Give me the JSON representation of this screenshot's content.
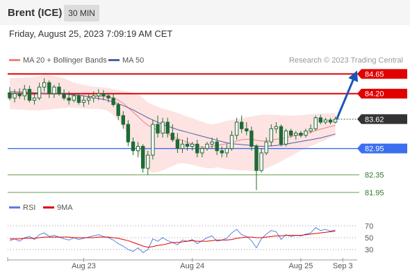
{
  "header": {
    "title": "Brent (ICE)",
    "timeframe": "30 MIN"
  },
  "date_label": "Friday, August 25, 2023 7:09:19 AM CET",
  "credit": "Research © 2023 Trading Central",
  "colors": {
    "resistance": "#e00000",
    "support_strong": "#3b6ff0",
    "support_green": "#6a9a50",
    "band_fill": "#fddada",
    "ma20": "#f08080",
    "ma50": "#5060a0",
    "candle": "#1e6b35",
    "rsi": "#5a7fe0",
    "rsi_ma": "#e00000",
    "price_tag": "#333333",
    "arrow": "#1a56b8"
  },
  "chart_data": [
    {
      "type": "candlestick",
      "legend": [
        {
          "name": "MA 20 + Bollinger Bands",
          "color": "#f08080"
        },
        {
          "name": "MA 50",
          "color": "#5060a0"
        }
      ],
      "legend_position": "top-left",
      "x_ticks": [
        {
          "label": "Aug 23",
          "index": 15
        },
        {
          "label": "Aug 24",
          "index": 37
        },
        {
          "label": "Aug 25",
          "index": 59
        },
        {
          "label": "Sep 3",
          "index": 67.5
        }
      ],
      "ylim": [
        81.9,
        84.75
      ],
      "levels": [
        {
          "label": "84.65",
          "value": 84.65,
          "kind": "resistance"
        },
        {
          "label": "84.20",
          "value": 84.2,
          "kind": "resistance"
        },
        {
          "label": "83.62",
          "value": 83.62,
          "kind": "current"
        },
        {
          "label": "82.95",
          "value": 82.95,
          "kind": "pivot"
        },
        {
          "label": "82.35",
          "value": 82.35,
          "kind": "support"
        },
        {
          "label": "81.95",
          "value": 81.95,
          "kind": "support"
        }
      ],
      "candles": [
        {
          "o": 84.22,
          "h": 84.35,
          "l": 84.05,
          "c": 84.1
        },
        {
          "o": 84.1,
          "h": 84.3,
          "l": 84.0,
          "c": 84.2
        },
        {
          "o": 84.2,
          "h": 84.32,
          "l": 84.08,
          "c": 84.15
        },
        {
          "o": 84.15,
          "h": 84.4,
          "l": 84.05,
          "c": 84.3
        },
        {
          "o": 84.3,
          "h": 84.38,
          "l": 84.0,
          "c": 84.05
        },
        {
          "o": 84.05,
          "h": 84.2,
          "l": 83.95,
          "c": 84.1
        },
        {
          "o": 84.1,
          "h": 84.45,
          "l": 84.05,
          "c": 84.35
        },
        {
          "o": 84.35,
          "h": 84.55,
          "l": 84.25,
          "c": 84.45
        },
        {
          "o": 84.45,
          "h": 84.5,
          "l": 84.1,
          "c": 84.2
        },
        {
          "o": 84.2,
          "h": 84.4,
          "l": 84.1,
          "c": 84.35
        },
        {
          "o": 84.35,
          "h": 84.45,
          "l": 84.15,
          "c": 84.2
        },
        {
          "o": 84.2,
          "h": 84.3,
          "l": 84.05,
          "c": 84.1
        },
        {
          "o": 84.1,
          "h": 84.25,
          "l": 83.95,
          "c": 84.05
        },
        {
          "o": 84.05,
          "h": 84.2,
          "l": 84.0,
          "c": 84.15
        },
        {
          "o": 84.15,
          "h": 84.22,
          "l": 83.95,
          "c": 84.0
        },
        {
          "o": 84.0,
          "h": 84.15,
          "l": 83.9,
          "c": 84.05
        },
        {
          "o": 84.05,
          "h": 84.18,
          "l": 83.95,
          "c": 84.1
        },
        {
          "o": 84.1,
          "h": 84.25,
          "l": 84.0,
          "c": 84.15
        },
        {
          "o": 84.15,
          "h": 84.3,
          "l": 84.05,
          "c": 84.2
        },
        {
          "o": 84.2,
          "h": 84.28,
          "l": 84.05,
          "c": 84.15
        },
        {
          "o": 84.15,
          "h": 84.22,
          "l": 84.0,
          "c": 84.1
        },
        {
          "o": 84.1,
          "h": 84.2,
          "l": 83.9,
          "c": 83.95
        },
        {
          "o": 83.95,
          "h": 84.0,
          "l": 83.6,
          "c": 83.7
        },
        {
          "o": 83.7,
          "h": 83.8,
          "l": 83.4,
          "c": 83.5
        },
        {
          "o": 83.5,
          "h": 83.6,
          "l": 83.0,
          "c": 83.1
        },
        {
          "o": 83.1,
          "h": 83.2,
          "l": 82.8,
          "c": 82.9
        },
        {
          "o": 82.9,
          "h": 83.1,
          "l": 82.75,
          "c": 83.0
        },
        {
          "o": 83.0,
          "h": 83.05,
          "l": 82.4,
          "c": 82.5
        },
        {
          "o": 82.5,
          "h": 82.9,
          "l": 82.35,
          "c": 82.8
        },
        {
          "o": 82.8,
          "h": 83.6,
          "l": 82.7,
          "c": 83.5
        },
        {
          "o": 83.5,
          "h": 83.7,
          "l": 83.2,
          "c": 83.3
        },
        {
          "o": 83.3,
          "h": 83.65,
          "l": 83.2,
          "c": 83.55
        },
        {
          "o": 83.55,
          "h": 83.65,
          "l": 83.2,
          "c": 83.3
        },
        {
          "o": 83.3,
          "h": 83.5,
          "l": 83.1,
          "c": 83.15
        },
        {
          "o": 83.15,
          "h": 83.3,
          "l": 82.85,
          "c": 82.95
        },
        {
          "o": 82.95,
          "h": 83.15,
          "l": 82.85,
          "c": 83.05
        },
        {
          "o": 83.05,
          "h": 83.2,
          "l": 82.9,
          "c": 83.0
        },
        {
          "o": 83.0,
          "h": 83.1,
          "l": 82.9,
          "c": 83.05
        },
        {
          "o": 83.05,
          "h": 83.15,
          "l": 82.75,
          "c": 82.85
        },
        {
          "o": 82.85,
          "h": 83.0,
          "l": 82.75,
          "c": 82.95
        },
        {
          "o": 82.95,
          "h": 83.1,
          "l": 82.9,
          "c": 83.05
        },
        {
          "o": 83.05,
          "h": 83.2,
          "l": 82.95,
          "c": 83.1
        },
        {
          "o": 83.1,
          "h": 83.2,
          "l": 82.8,
          "c": 82.9
        },
        {
          "o": 82.9,
          "h": 83.0,
          "l": 82.75,
          "c": 82.85
        },
        {
          "o": 82.85,
          "h": 83.05,
          "l": 82.75,
          "c": 82.95
        },
        {
          "o": 82.95,
          "h": 83.35,
          "l": 82.9,
          "c": 83.25
        },
        {
          "o": 83.25,
          "h": 83.65,
          "l": 83.15,
          "c": 83.55
        },
        {
          "o": 83.55,
          "h": 83.7,
          "l": 83.3,
          "c": 83.4
        },
        {
          "o": 83.4,
          "h": 83.55,
          "l": 83.25,
          "c": 83.35
        },
        {
          "o": 83.35,
          "h": 83.45,
          "l": 82.9,
          "c": 83.0
        },
        {
          "o": 83.0,
          "h": 83.05,
          "l": 82.0,
          "c": 82.45
        },
        {
          "o": 82.45,
          "h": 82.95,
          "l": 82.4,
          "c": 82.85
        },
        {
          "o": 82.85,
          "h": 83.2,
          "l": 82.8,
          "c": 83.1
        },
        {
          "o": 83.1,
          "h": 83.5,
          "l": 83.0,
          "c": 83.4
        },
        {
          "o": 83.4,
          "h": 83.55,
          "l": 83.3,
          "c": 83.45
        },
        {
          "o": 83.45,
          "h": 83.5,
          "l": 83.0,
          "c": 83.05
        },
        {
          "o": 83.05,
          "h": 83.4,
          "l": 83.0,
          "c": 83.35
        },
        {
          "o": 83.35,
          "h": 83.4,
          "l": 83.2,
          "c": 83.25
        },
        {
          "o": 83.25,
          "h": 83.35,
          "l": 83.15,
          "c": 83.3
        },
        {
          "o": 83.3,
          "h": 83.35,
          "l": 83.2,
          "c": 83.25
        },
        {
          "o": 83.25,
          "h": 83.4,
          "l": 83.2,
          "c": 83.35
        },
        {
          "o": 83.35,
          "h": 83.5,
          "l": 83.3,
          "c": 83.4
        },
        {
          "o": 83.4,
          "h": 83.7,
          "l": 83.35,
          "c": 83.65
        },
        {
          "o": 83.65,
          "h": 83.72,
          "l": 83.5,
          "c": 83.55
        },
        {
          "o": 83.55,
          "h": 83.65,
          "l": 83.5,
          "c": 83.6
        },
        {
          "o": 83.6,
          "h": 83.65,
          "l": 83.5,
          "c": 83.55
        },
        {
          "o": 83.55,
          "h": 83.68,
          "l": 83.52,
          "c": 83.62
        }
      ],
      "ma20": [
        84.2,
        84.2,
        84.19,
        84.19,
        84.18,
        84.18,
        84.19,
        84.2,
        84.2,
        84.2,
        84.2,
        84.19,
        84.18,
        84.17,
        84.16,
        84.15,
        84.14,
        84.14,
        84.14,
        84.14,
        84.13,
        84.1,
        84.05,
        83.98,
        83.88,
        83.78,
        83.68,
        83.57,
        83.48,
        83.42,
        83.37,
        83.33,
        83.28,
        83.23,
        83.18,
        83.13,
        83.09,
        83.05,
        83.01,
        82.98,
        82.98,
        83.0,
        83.02,
        83.04,
        83.06,
        83.09,
        83.12,
        83.15,
        83.16,
        83.16,
        83.14,
        83.12,
        83.12,
        83.14,
        83.16,
        83.17,
        83.2,
        83.22,
        83.25,
        83.27,
        83.29,
        83.32,
        83.36,
        83.39,
        83.42,
        83.45,
        83.48
      ],
      "ma50": [
        84.25,
        84.24,
        84.24,
        84.23,
        84.23,
        84.22,
        84.22,
        84.21,
        84.21,
        84.2,
        84.2,
        84.19,
        84.18,
        84.17,
        84.16,
        84.15,
        84.13,
        84.11,
        84.09,
        84.07,
        84.04,
        84.01,
        83.97,
        83.93,
        83.88,
        83.83,
        83.77,
        83.71,
        83.65,
        83.6,
        83.55,
        83.5,
        83.46,
        83.42,
        83.38,
        83.35,
        83.32,
        83.29,
        83.26,
        83.23,
        83.2,
        83.17,
        83.14,
        83.11,
        83.08,
        83.06,
        83.05,
        83.04,
        83.03,
        83.02,
        83.01,
        83.0,
        83.0,
        83.01,
        83.02,
        83.03,
        83.05,
        83.07,
        83.09,
        83.11,
        83.13,
        83.15,
        83.17,
        83.19,
        83.22,
        83.25,
        83.28
      ],
      "bb_upper": [
        84.55,
        84.56,
        84.56,
        84.57,
        84.57,
        84.58,
        84.6,
        84.62,
        84.62,
        84.6,
        84.58,
        84.55,
        84.5,
        84.45,
        84.42,
        84.4,
        84.38,
        84.36,
        84.35,
        84.34,
        84.33,
        84.3,
        84.28,
        84.26,
        84.24,
        84.22,
        84.2,
        84.1,
        84.0,
        83.95,
        83.9,
        83.86,
        83.83,
        83.8,
        83.76,
        83.72,
        83.68,
        83.64,
        83.6,
        83.56,
        83.52,
        83.5,
        83.52,
        83.55,
        83.58,
        83.6,
        83.62,
        83.64,
        83.66,
        83.68,
        83.7,
        83.72,
        83.72,
        83.72,
        83.72,
        83.71,
        83.7,
        83.7,
        83.7,
        83.71,
        83.72,
        83.73,
        83.74,
        83.75,
        83.75,
        83.75,
        83.76
      ],
      "bb_lower": [
        83.85,
        83.84,
        83.84,
        83.83,
        83.82,
        83.82,
        83.82,
        83.83,
        83.84,
        83.85,
        83.86,
        83.87,
        83.88,
        83.88,
        83.87,
        83.86,
        83.85,
        83.85,
        83.85,
        83.84,
        83.8,
        83.72,
        83.6,
        83.45,
        83.25,
        83.05,
        82.85,
        82.65,
        82.45,
        82.4,
        82.42,
        82.45,
        82.5,
        82.55,
        82.6,
        82.62,
        82.6,
        82.58,
        82.55,
        82.52,
        82.5,
        82.5,
        82.52,
        82.5,
        82.48,
        82.47,
        82.46,
        82.45,
        82.45,
        82.44,
        82.43,
        82.45,
        82.5,
        82.55,
        82.6,
        82.66,
        82.72,
        82.78,
        82.84,
        82.9,
        82.95,
        83.0,
        83.05,
        83.1,
        83.15,
        83.2,
        83.24
      ],
      "projection": {
        "from": 83.62,
        "to": 84.65
      }
    },
    {
      "type": "line",
      "legend": [
        {
          "name": "RSI",
          "color": "#5a7fe0"
        },
        {
          "name": "9MA",
          "color": "#e00000"
        }
      ],
      "y_ticks": [
        "70",
        "50",
        "30"
      ],
      "ylim": [
        15,
        85
      ],
      "series": [
        {
          "name": "RSI",
          "values": [
            45,
            48,
            44,
            50,
            52,
            47,
            55,
            58,
            52,
            54,
            51,
            48,
            46,
            50,
            47,
            49,
            51,
            53,
            55,
            52,
            50,
            46,
            40,
            36,
            30,
            27,
            33,
            25,
            30,
            48,
            44,
            50,
            45,
            42,
            38,
            46,
            44,
            47,
            40,
            45,
            50,
            53,
            44,
            46,
            49,
            58,
            64,
            55,
            52,
            45,
            33,
            48,
            56,
            62,
            60,
            47,
            55,
            52,
            54,
            53,
            56,
            58,
            67,
            62,
            64,
            61,
            63
          ]
        },
        {
          "name": "9MA",
          "values": [
            48,
            48,
            48,
            49,
            49,
            49,
            50,
            51,
            51,
            51,
            51,
            51,
            51,
            50,
            50,
            50,
            50,
            50,
            51,
            51,
            51,
            50,
            49,
            47,
            45,
            42,
            39,
            36,
            34,
            35,
            37,
            38,
            40,
            42,
            42,
            43,
            44,
            45,
            44,
            44,
            44,
            45,
            46,
            46,
            46,
            47,
            49,
            50,
            51,
            51,
            50,
            50,
            51,
            52,
            53,
            53,
            54,
            54,
            54,
            54,
            55,
            56,
            57,
            58,
            59,
            60,
            61
          ]
        }
      ]
    }
  ]
}
